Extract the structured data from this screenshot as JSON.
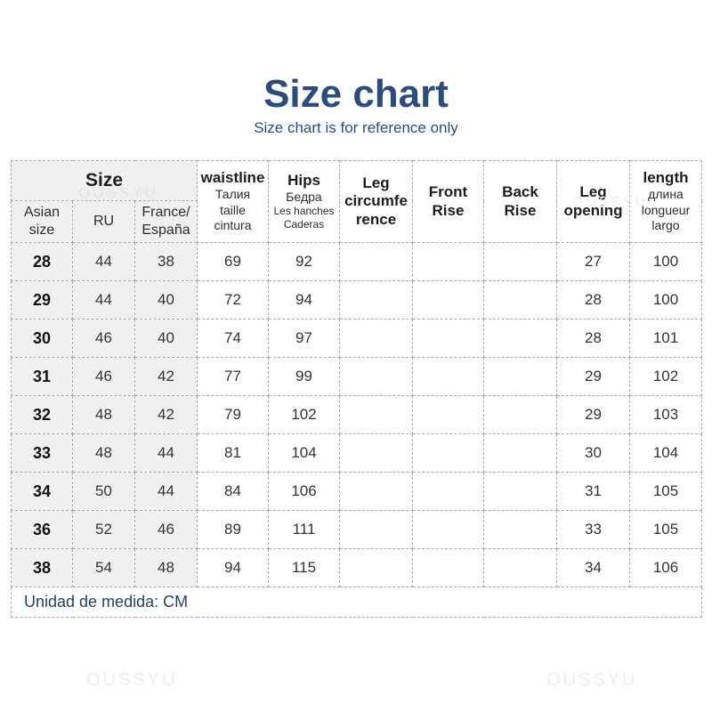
{
  "page": {
    "title": "Size chart",
    "subtitle": "Size chart is for reference only",
    "unit_note": "Unidad de medida: CM",
    "watermark_text": "OUSSYU"
  },
  "colors": {
    "title-blue": "#2c4c7e",
    "note-blue": "#24406e",
    "shade-bg": "#f0f0f0",
    "border-gray": "#a9a9a9",
    "text-dark": "#2b2b2b",
    "watermark-light": "#ededed",
    "watermark-on-shade": "#e3e3e3"
  },
  "table": {
    "size_group_label": "Size",
    "sub_headers": [
      "Asian\nsize",
      "RU",
      "France/\nEspaña"
    ],
    "columns": [
      {
        "label": "waistline",
        "sub": "Талия\ntaille\ncintura",
        "sub_small": ""
      },
      {
        "label": "Hips",
        "sub": "Бедра",
        "sub_small": "Les hanches\nCaderas"
      },
      {
        "label": "Leg\ncircumfe\nrence",
        "sub": "",
        "sub_small": ""
      },
      {
        "label": "Front\nRise",
        "sub": "",
        "sub_small": ""
      },
      {
        "label": "Back\nRise",
        "sub": "",
        "sub_small": ""
      },
      {
        "label": "Leg\nopening",
        "sub": "",
        "sub_small": ""
      },
      {
        "label": "length",
        "sub": "длина\nlongueur\nlargo",
        "sub_small": ""
      }
    ]
  },
  "chart_data": {
    "type": "table",
    "title": "Size chart",
    "subtitle": "Size chart is for reference only",
    "unit": "CM",
    "unit_note": "Unidad de medida: CM",
    "columns": [
      "Asian size",
      "RU",
      "France/España",
      "waistline",
      "Hips",
      "Leg circumference",
      "Front Rise",
      "Back Rise",
      "Leg opening",
      "length"
    ],
    "rows": [
      [
        28,
        44,
        38,
        69,
        92,
        null,
        null,
        null,
        27,
        100
      ],
      [
        29,
        44,
        40,
        72,
        94,
        null,
        null,
        null,
        28,
        100
      ],
      [
        30,
        46,
        40,
        74,
        97,
        null,
        null,
        null,
        28,
        101
      ],
      [
        31,
        46,
        42,
        77,
        99,
        null,
        null,
        null,
        29,
        102
      ],
      [
        32,
        48,
        42,
        79,
        102,
        null,
        null,
        null,
        29,
        103
      ],
      [
        33,
        48,
        44,
        81,
        104,
        null,
        null,
        null,
        30,
        104
      ],
      [
        34,
        50,
        44,
        84,
        106,
        null,
        null,
        null,
        31,
        105
      ],
      [
        36,
        52,
        46,
        89,
        111,
        null,
        null,
        null,
        33,
        105
      ],
      [
        38,
        54,
        48,
        94,
        115,
        null,
        null,
        null,
        34,
        106
      ]
    ]
  }
}
